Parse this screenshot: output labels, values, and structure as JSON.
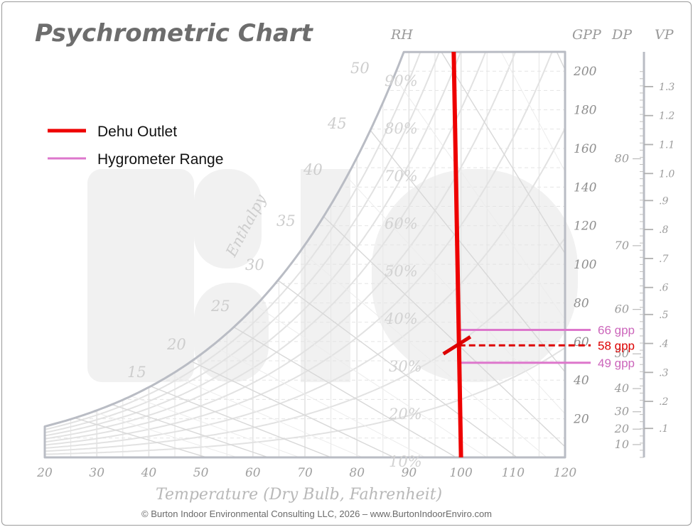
{
  "chart_data": {
    "type": "line",
    "title": "Psychrometric Chart",
    "xlabel": "Temperature (Dry Bulb, Fahrenheit)",
    "xlim": [
      20,
      120
    ],
    "ylim": [
      0,
      210
    ],
    "x_ticks": [
      20,
      30,
      40,
      50,
      60,
      70,
      80,
      90,
      100,
      110,
      120
    ],
    "column_headers": {
      "rh": "RH",
      "gpp": "GPP",
      "dp": "DP",
      "vp": "VP"
    },
    "gpp_ticks": [
      20,
      40,
      60,
      80,
      100,
      120,
      140,
      160,
      180,
      200
    ],
    "dew_point_ticks": [
      {
        "label": "10",
        "gpp": 7
      },
      {
        "label": "20",
        "gpp": 15
      },
      {
        "label": "30",
        "gpp": 24
      },
      {
        "label": "40",
        "gpp": 36
      },
      {
        "label": "50",
        "gpp": 54
      },
      {
        "label": "60",
        "gpp": 77
      },
      {
        "label": "70",
        "gpp": 110
      },
      {
        "label": "80",
        "gpp": 155
      }
    ],
    "vapor_pressure_ticks": [
      {
        "label": ".1",
        "gpp": 15
      },
      {
        "label": ".2",
        "gpp": 29
      },
      {
        "label": ".3",
        "gpp": 44
      },
      {
        "label": ".4",
        "gpp": 59
      },
      {
        "label": ".5",
        "gpp": 74
      },
      {
        "label": ".6",
        "gpp": 88
      },
      {
        "label": ".7",
        "gpp": 103
      },
      {
        "label": ".8",
        "gpp": 118
      },
      {
        "label": ".9",
        "gpp": 133
      },
      {
        "label": "1.0",
        "gpp": 147
      },
      {
        "label": "1.1",
        "gpp": 162
      },
      {
        "label": "1.2",
        "gpp": 177
      },
      {
        "label": "1.3",
        "gpp": 192
      }
    ],
    "rh_labels": [
      "90%",
      "80%",
      "70%",
      "60%",
      "50%",
      "40%",
      "30%",
      "20%",
      "10%"
    ],
    "rh_curves": [
      10,
      20,
      30,
      40,
      50,
      60,
      70,
      80,
      90
    ],
    "enthalpy_label": "Enthalpy",
    "enthalpy_values": [
      15,
      20,
      25,
      30,
      35,
      40,
      45,
      50
    ],
    "series": [
      {
        "name": "Dehu Outlet",
        "color": "#ee0000",
        "x": [
          98.6,
          100
        ],
        "y": [
          210,
          0
        ]
      },
      {
        "name": "Hygrometer Range",
        "color": "#dd77cc",
        "bounds_gpp": [
          49,
          66
        ]
      }
    ],
    "annotations": [
      {
        "text": "66 gpp",
        "gpp": 66,
        "color": "#cc66bb"
      },
      {
        "text": "58 gpp",
        "gpp": 58,
        "color": "#dd0000",
        "style": "dashed"
      },
      {
        "text": "49 gpp",
        "gpp": 49,
        "color": "#cc66bb"
      }
    ],
    "legend": {
      "position": "top-left"
    }
  },
  "footer": {
    "copyright": "© Burton Indoor Environmental Consulting LLC, 2026 – www.BurtonIndoorEnviro.com"
  }
}
